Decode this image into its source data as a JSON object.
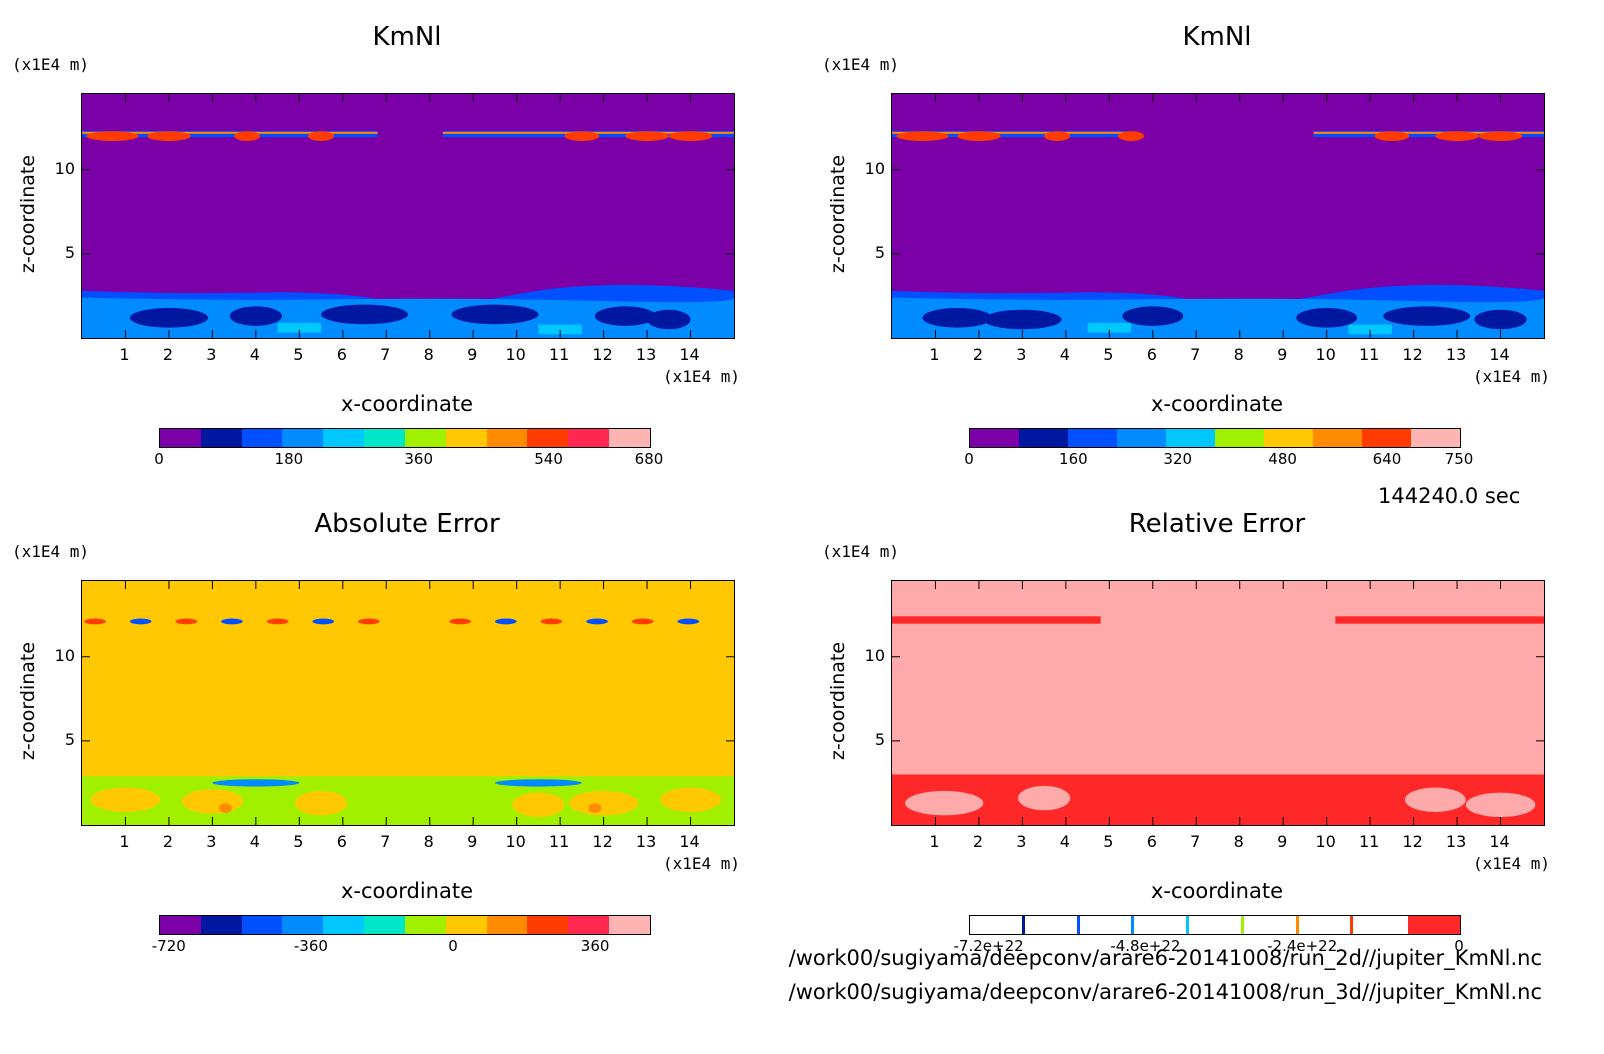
{
  "panels": [
    {
      "title": "KmNl",
      "zunit": "(x1E4 m)",
      "xunit": "(x1E4 m)",
      "ylabel": "z-coordinate",
      "xlabel": "x-coordinate",
      "bg": "#7B00A8",
      "colorbar": {
        "colors": [
          "#7B00A8",
          "#0018A0",
          "#0050FF",
          "#008CFF",
          "#00C8FF",
          "#00E6C8",
          "#A0F000",
          "#FFC800",
          "#FF8C00",
          "#FF3C00",
          "#FF2850",
          "#FFB4B4"
        ],
        "ticks": [
          "0",
          "180",
          "360",
          "540",
          "680"
        ]
      }
    },
    {
      "title": "KmNl",
      "zunit": "(x1E4 m)",
      "xunit": "(x1E4 m)",
      "ylabel": "z-coordinate",
      "xlabel": "x-coordinate",
      "bg": "#7B00A8",
      "colorbar": {
        "colors": [
          "#7B00A8",
          "#0018A0",
          "#0050FF",
          "#008CFF",
          "#00C8FF",
          "#A0F000",
          "#FFC800",
          "#FF8C00",
          "#FF3C00",
          "#FFB4B4"
        ],
        "ticks": [
          "0",
          "160",
          "320",
          "480",
          "640",
          "750"
        ]
      }
    },
    {
      "title": "Absolute Error",
      "zunit": "(x1E4 m)",
      "xunit": "(x1E4 m)",
      "ylabel": "z-coordinate",
      "xlabel": "x-coordinate",
      "bg": "#FFC800",
      "colorbar": {
        "colors": [
          "#7B00A8",
          "#0018A0",
          "#0050FF",
          "#008CFF",
          "#00C8FF",
          "#00E6C8",
          "#A0F000",
          "#FFC800",
          "#FF8C00",
          "#FF3C00",
          "#FF2850",
          "#FFB4B4"
        ],
        "ticks": [
          "-720",
          "-360",
          "0",
          "360"
        ]
      }
    },
    {
      "title": "Relative Error",
      "zunit": "(x1E4 m)",
      "xunit": "(x1E4 m)",
      "ylabel": "z-coordinate",
      "xlabel": "x-coordinate",
      "bg": "#FFAAAA",
      "colorbar": {
        "colors": [
          "#ffffff",
          "#ffffff",
          "#ffffff",
          "#ffffff",
          "#ffffff",
          "#ffffff",
          "#ffffff",
          "#ffffff",
          "#FF2828"
        ],
        "ticks": [
          "-7.2e+22",
          "-4.8e+22",
          "-2.4e+22",
          "0"
        ]
      }
    }
  ],
  "chart_data": {
    "type": "heatmap",
    "x_ticks": [
      "1",
      "2",
      "3",
      "4",
      "5",
      "6",
      "7",
      "8",
      "9",
      "10",
      "11",
      "12",
      "13",
      "14"
    ],
    "y_ticks": [
      "5",
      "10"
    ],
    "xlim": [
      0,
      15
    ],
    "ylim": [
      0,
      14.5
    ]
  },
  "time_label": "144240.0 sec",
  "files": [
    "/work00/sugiyama/deepconv/arare6-20141008/run_2d//jupiter_KmNl.nc",
    "/work00/sugiyama/deepconv/arare6-20141008/run_3d//jupiter_KmNl.nc"
  ]
}
